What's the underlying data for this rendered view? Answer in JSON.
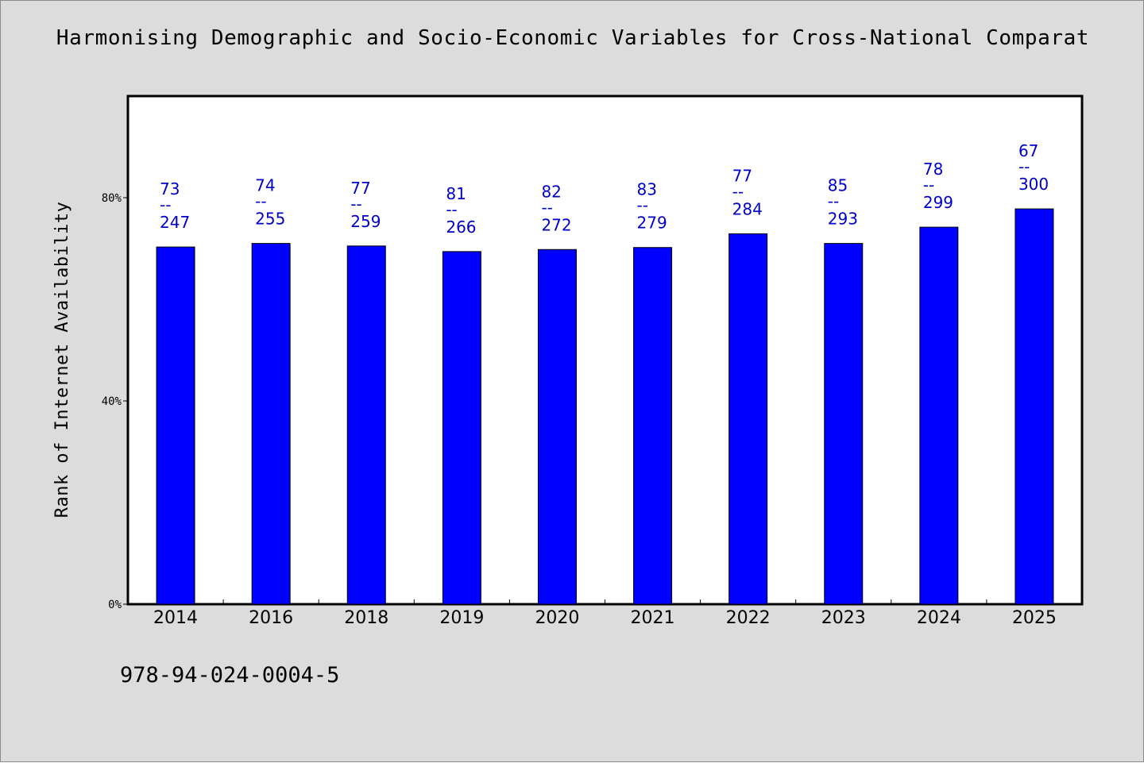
{
  "chart_data": {
    "type": "bar",
    "title": "Harmonising Demographic and Socio-Economic Variables for Cross-National Comparat",
    "xlabel": "",
    "ylabel": "Rank of Internet Availability",
    "ylim": [
      0,
      100
    ],
    "yticks": [
      0,
      40,
      80
    ],
    "ytick_labels": [
      "0%",
      "40%",
      "80%"
    ],
    "categories": [
      "2014",
      "2016",
      "2018",
      "2019",
      "2020",
      "2021",
      "2022",
      "2023",
      "2024",
      "2025"
    ],
    "values": [
      70.3,
      71.0,
      70.5,
      69.4,
      69.8,
      70.2,
      72.9,
      71.0,
      74.2,
      77.8
    ],
    "annotation_top": [
      "73",
      "74",
      "77",
      "81",
      "82",
      "83",
      "77",
      "85",
      "78",
      "67"
    ],
    "annotation_bottom": [
      "247",
      "255",
      "259",
      "266",
      "272",
      "279",
      "284",
      "293",
      "299",
      "300"
    ],
    "annotation_separator": "--",
    "grid": false,
    "legend": "none",
    "colors": {
      "bar": "#0000ff",
      "data_label": "#0000cc",
      "plot_background": "#ffffff",
      "figure_background": "#dcdcdc"
    }
  },
  "footer": {
    "code": "978-94-024-0004-5"
  }
}
